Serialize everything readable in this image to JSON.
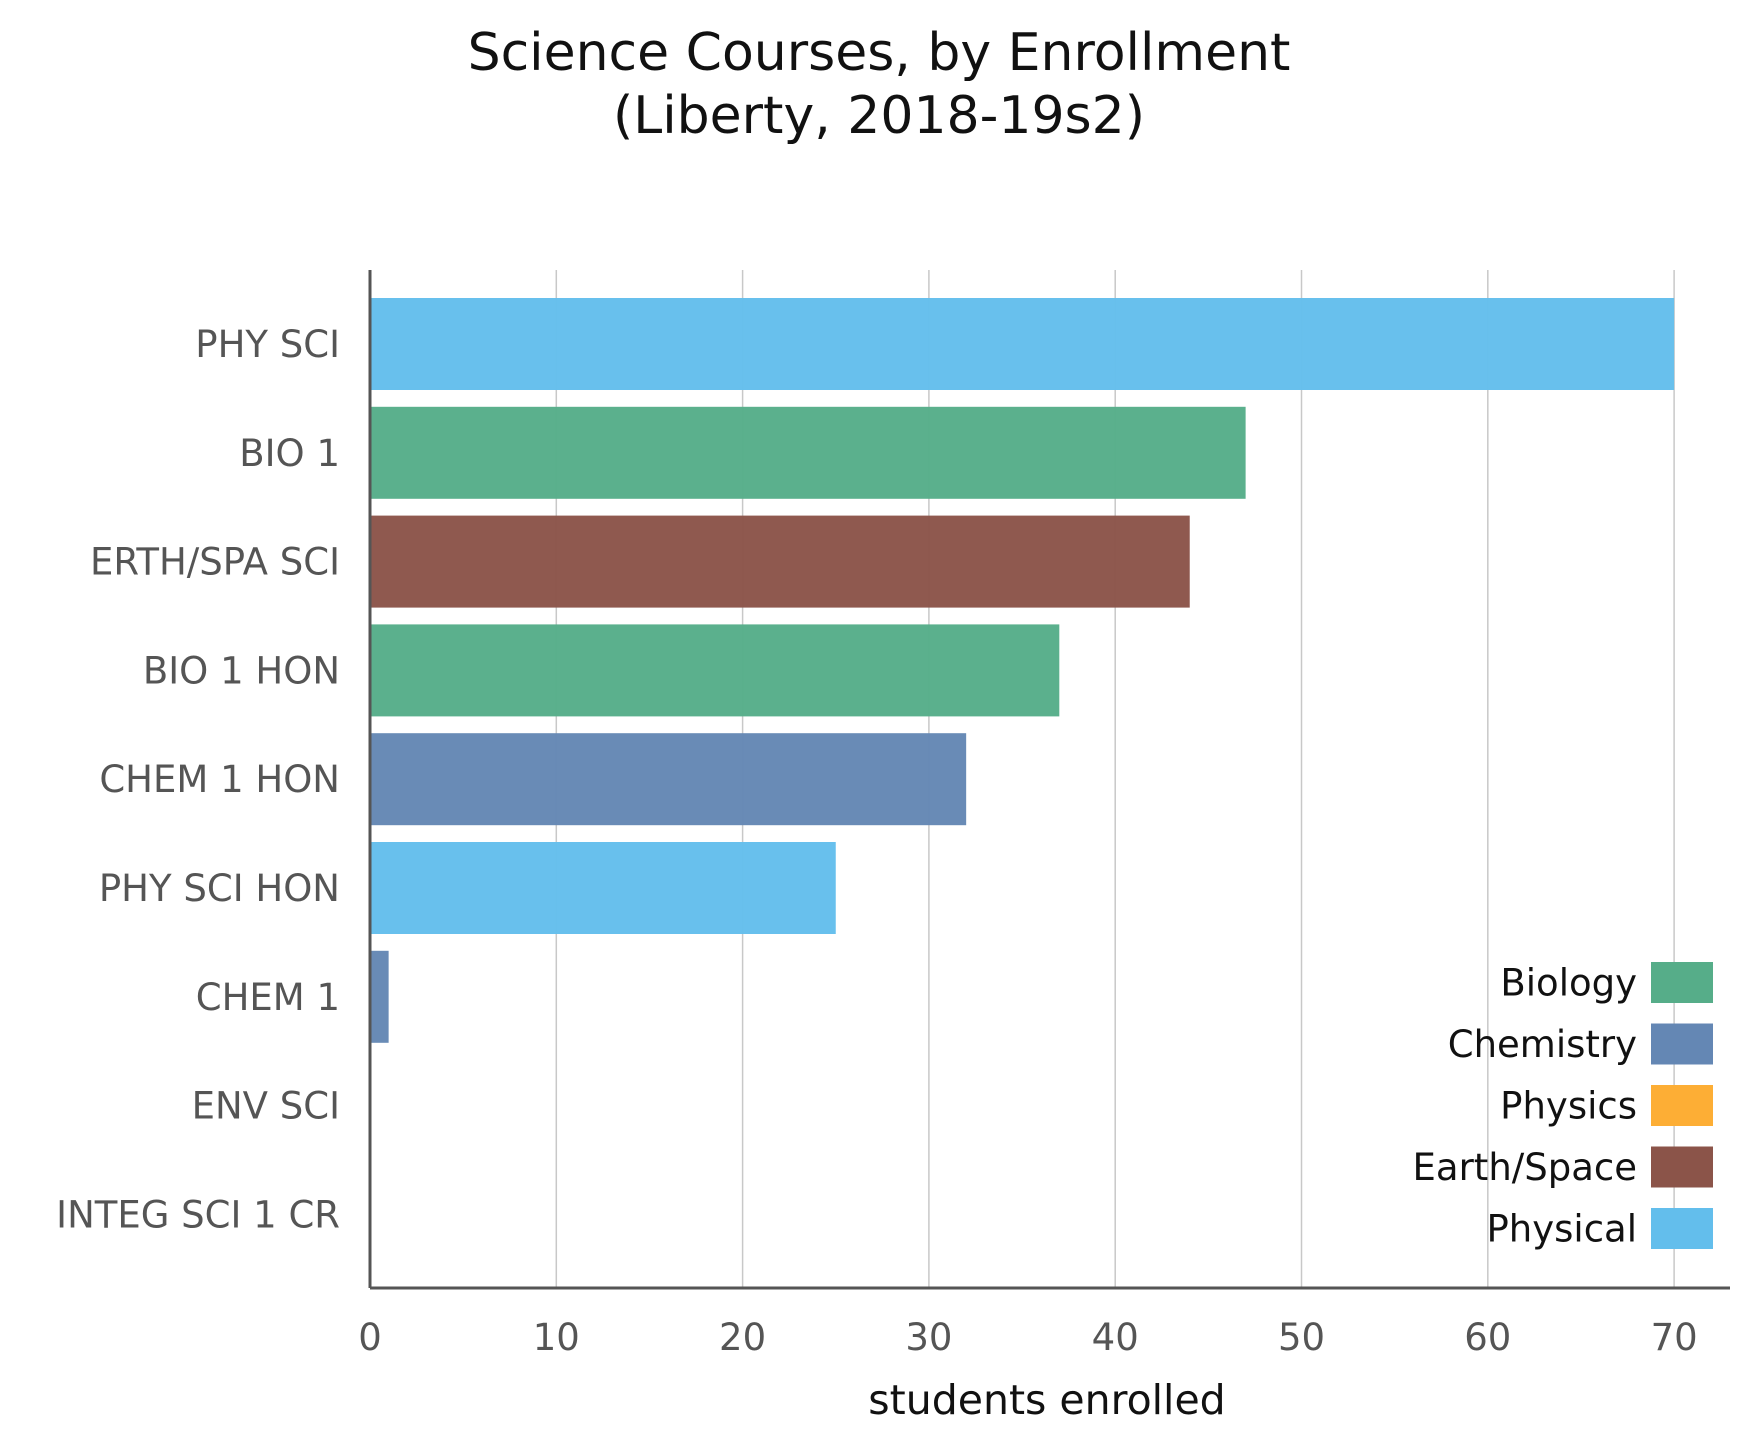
{
  "chart_data": {
    "type": "bar",
    "orientation": "horizontal",
    "title": "Science Courses, by Enrollment\n(Liberty, 2018-19s2)",
    "xlabel": "students enrolled",
    "ylabel": "",
    "xlim": [
      0,
      73
    ],
    "xticks": [
      0,
      10,
      20,
      30,
      40,
      50,
      60,
      70
    ],
    "grid": true,
    "legend_position": "bottom-right",
    "categories": [
      "PHY SCI",
      "BIO 1",
      "ERTH/SPA SCI",
      "BIO 1 HON",
      "CHEM 1 HON",
      "PHY SCI HON",
      "CHEM 1",
      "ENV SCI",
      "INTEG SCI 1 CR"
    ],
    "values": [
      70,
      47,
      44,
      37,
      32,
      25,
      1,
      0,
      0
    ],
    "bar_groups": [
      "Physical",
      "Biology",
      "Earth/Space",
      "Biology",
      "Chemistry",
      "Physical",
      "Chemistry",
      "",
      ""
    ],
    "legend": [
      {
        "label": "Biology",
        "color": "#56ad89"
      },
      {
        "label": "Chemistry",
        "color": "#6487b4"
      },
      {
        "label": "Physics",
        "color": "#fdae35"
      },
      {
        "label": "Earth/Space",
        "color": "#8b5449"
      },
      {
        "label": "Physical",
        "color": "#63beec"
      }
    ]
  }
}
